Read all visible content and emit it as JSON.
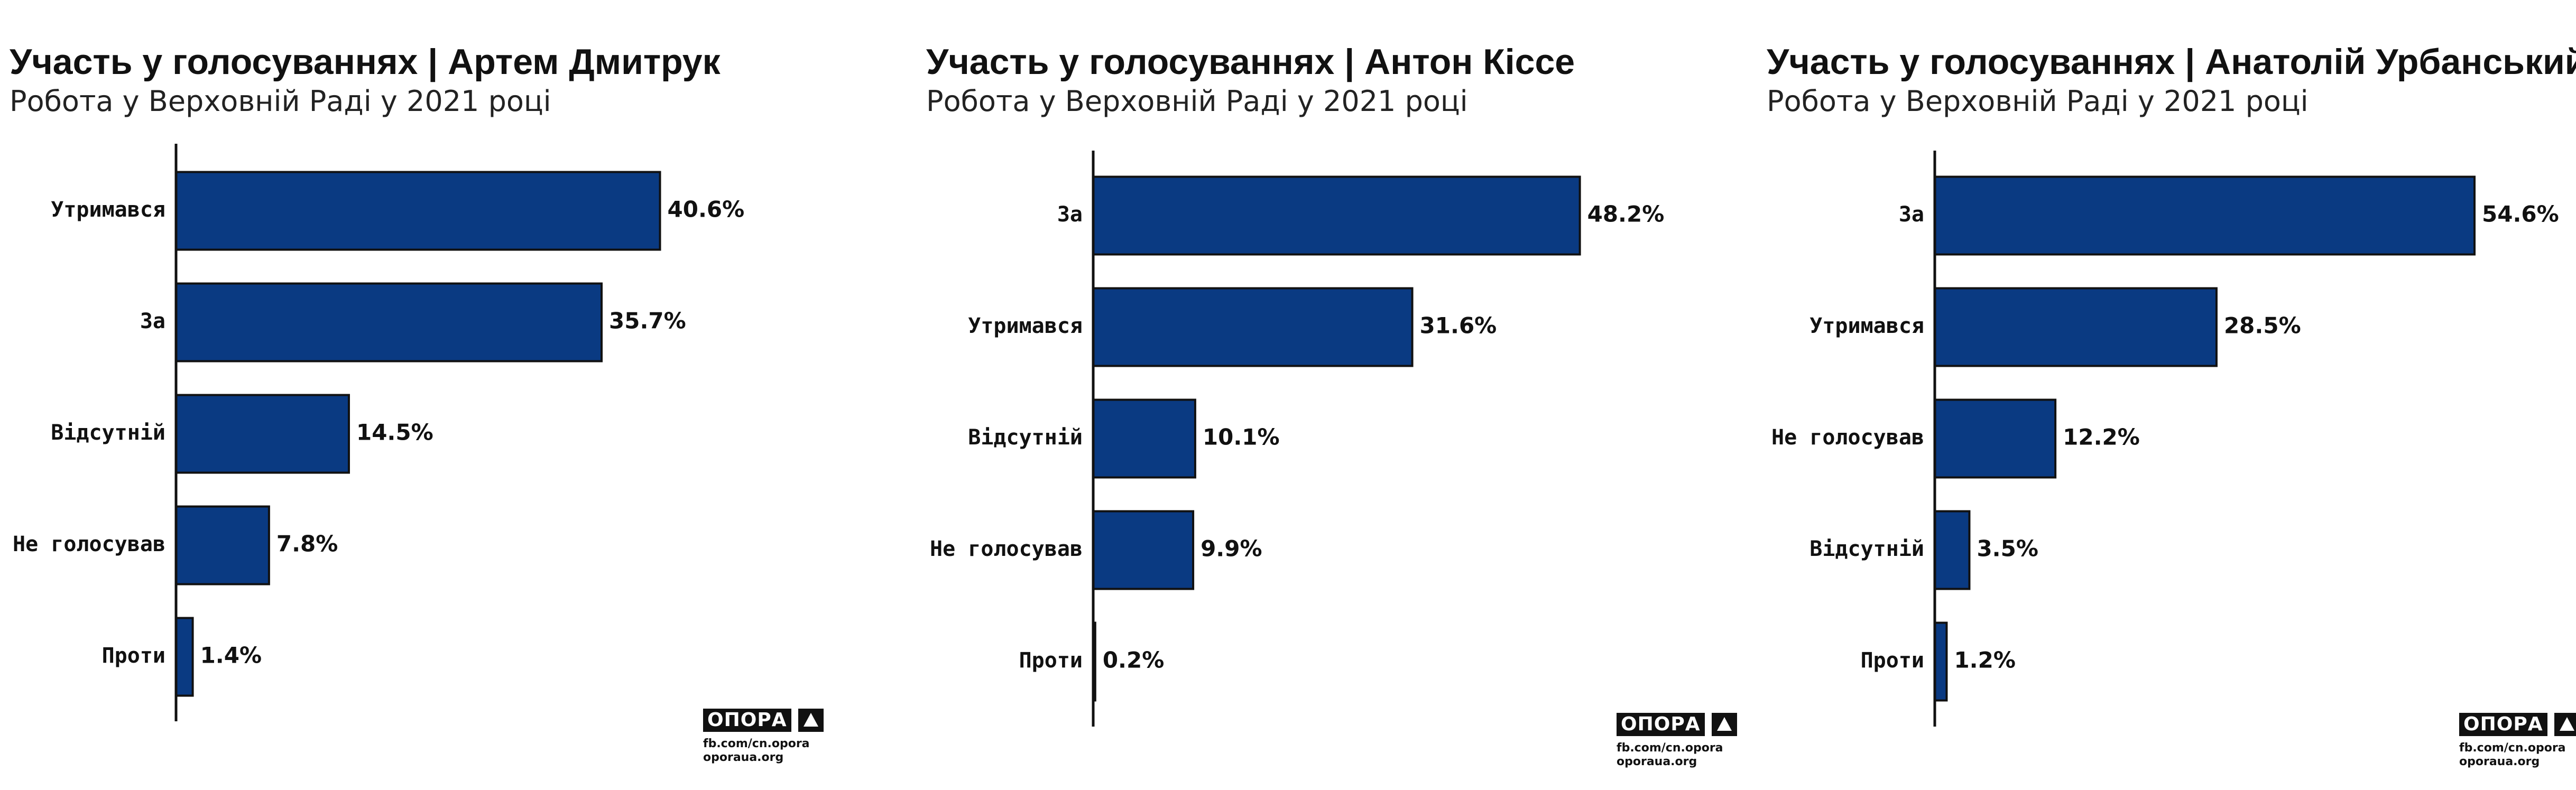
{
  "colors": {
    "bar": "#0a3a82",
    "bar_outline": "#111111",
    "axis": "#111111",
    "text": "#111111"
  },
  "logo": {
    "brand": "ОПОРА",
    "icon": "triangle-icon",
    "line1": "fb.com/cn.opora",
    "line2": "oporaua.org"
  },
  "chart_data": [
    {
      "type": "bar",
      "orientation": "horizontal",
      "title": "Участь у голосуваннях | Артем Дмитрук",
      "subtitle": "Робота у Верховній Раді у 2021 році",
      "categories": [
        "Утримався",
        "За",
        "Відсутній",
        "Не голосував",
        "Проти"
      ],
      "values": [
        40.6,
        35.7,
        14.5,
        7.8,
        1.4
      ],
      "labels": [
        "40.6%",
        "35.7%",
        "14.5%",
        "7.8%",
        "1.4%"
      ],
      "unit": "%",
      "xlim": [
        0,
        50
      ],
      "grid": false,
      "legend": false
    },
    {
      "type": "bar",
      "orientation": "horizontal",
      "title": "Участь у голосуваннях | Антон Кіссе",
      "subtitle": "Робота у Верховній Раді у 2021 році",
      "categories": [
        "За",
        "Утримався",
        "Відсутній",
        "Не голосував",
        "Проти"
      ],
      "values": [
        48.2,
        31.6,
        10.1,
        9.9,
        0.2
      ],
      "labels": [
        "48.2%",
        "31.6%",
        "10.1%",
        "9.9%",
        "0.2%"
      ],
      "unit": "%",
      "xlim": [
        0,
        57
      ],
      "grid": false,
      "legend": false
    },
    {
      "type": "bar",
      "orientation": "horizontal",
      "title": "Участь у голосуваннях | Анатолій Урбанський",
      "subtitle": "Робота у Верховній Раді у 2021 році",
      "categories": [
        "За",
        "Утримався",
        "Не голосував",
        "Відсутній",
        "Проти"
      ],
      "values": [
        54.6,
        28.5,
        12.2,
        3.5,
        1.2
      ],
      "labels": [
        "54.6%",
        "28.5%",
        "12.2%",
        "3.5%",
        "1.2%"
      ],
      "unit": "%",
      "xlim": [
        0,
        60
      ],
      "grid": false,
      "legend": false
    }
  ]
}
